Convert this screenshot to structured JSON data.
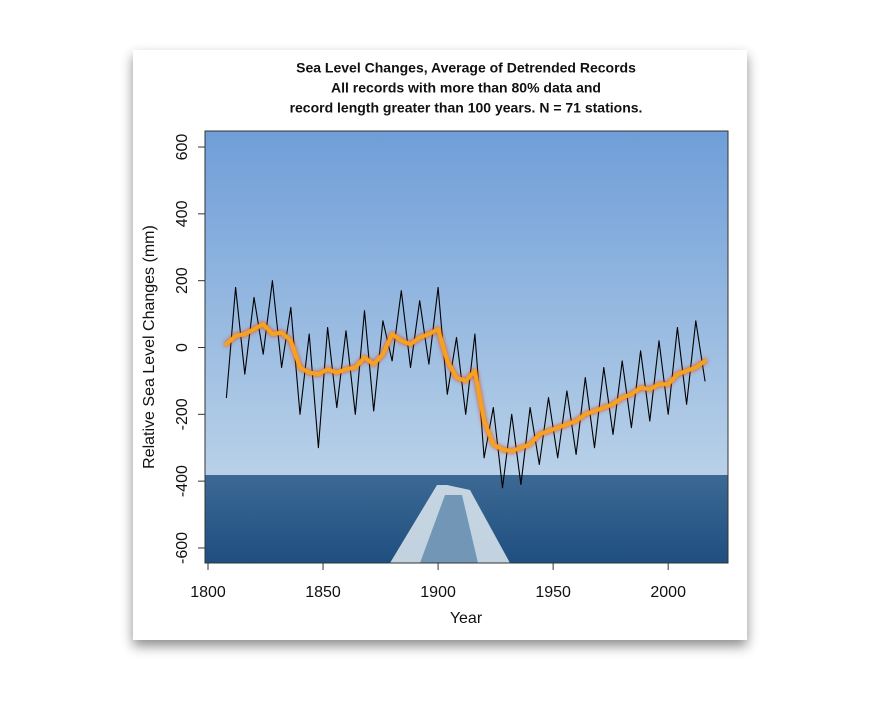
{
  "chart_data": {
    "type": "line",
    "title": [
      "Sea Level Changes, Average of Detrended Records",
      "All records with more than 80% data and",
      "record length greater than 100 years. N = 71 stations."
    ],
    "x_label": "Year",
    "y_label": "Relative Sea Level Changes (mm)",
    "x": [
      1808,
      1812,
      1816,
      1820,
      1824,
      1828,
      1832,
      1836,
      1840,
      1844,
      1848,
      1852,
      1856,
      1860,
      1864,
      1868,
      1872,
      1876,
      1880,
      1884,
      1888,
      1892,
      1896,
      1900,
      1904,
      1908,
      1912,
      1916,
      1920,
      1924,
      1928,
      1932,
      1936,
      1940,
      1944,
      1948,
      1952,
      1956,
      1960,
      1964,
      1968,
      1972,
      1976,
      1980,
      1984,
      1988,
      1992,
      1996,
      2000,
      2004,
      2008,
      2012,
      2016
    ],
    "series": [
      {
        "color": "#000000",
        "values": [
          -150,
          180,
          -80,
          150,
          -20,
          200,
          -60,
          120,
          -200,
          40,
          -300,
          60,
          -180,
          50,
          -200,
          110,
          -190,
          80,
          -40,
          170,
          -60,
          140,
          -50,
          180,
          -140,
          30,
          -200,
          40,
          -330,
          -180,
          -420,
          -200,
          -410,
          -180,
          -350,
          -150,
          -330,
          -130,
          -320,
          -90,
          -300,
          -60,
          -260,
          -40,
          -240,
          -10,
          -220,
          20,
          -200,
          60,
          -170,
          80,
          -100
        ]
      },
      {
        "color": "#f7a21b",
        "values": [
          10,
          35,
          40,
          55,
          70,
          40,
          45,
          20,
          -60,
          -75,
          -80,
          -65,
          -75,
          -65,
          -60,
          -30,
          -50,
          -20,
          40,
          20,
          10,
          30,
          40,
          55,
          -40,
          -90,
          -100,
          -70,
          -220,
          -290,
          -305,
          -310,
          -300,
          -290,
          -260,
          -250,
          -240,
          -230,
          -220,
          -200,
          -190,
          -180,
          -170,
          -150,
          -140,
          -120,
          -125,
          -110,
          -110,
          -80,
          -70,
          -60,
          -40
        ]
      }
    ],
    "xlim": [
      1798.7,
      2026
    ],
    "ylim": [
      -645,
      648
    ],
    "xticks": [
      1800,
      1850,
      1900,
      1950,
      2000
    ],
    "yticks": [
      -600,
      -400,
      -200,
      0,
      200,
      400,
      600
    ]
  }
}
